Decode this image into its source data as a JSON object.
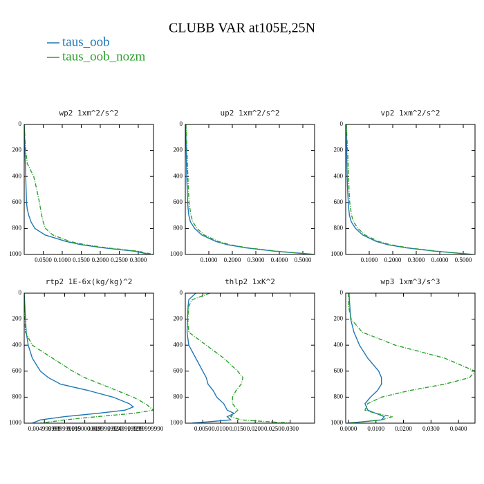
{
  "title": "CLUBB VAR at105E,25N",
  "legend": [
    {
      "name": "taus_oob",
      "color": "#1f77b4",
      "dashed": false
    },
    {
      "name": "taus_oob_nozm",
      "color": "#2ca02c",
      "dashed": true
    }
  ],
  "chart_data": [
    {
      "type": "line",
      "title": "wp2  1xm^2/s^2",
      "y": [
        0,
        100,
        200,
        300,
        400,
        500,
        600,
        650,
        700,
        750,
        800,
        850,
        900,
        925,
        950,
        975,
        1000
      ],
      "series": [
        {
          "values": [
            0,
            0.001,
            0.002,
            0.003,
            0.004,
            0.005,
            0.006,
            0.008,
            0.012,
            0.018,
            0.028,
            0.055,
            0.11,
            0.15,
            0.21,
            0.29,
            0.33
          ]
        },
        {
          "values": [
            0,
            0.002,
            0.004,
            0.008,
            0.025,
            0.033,
            0.04,
            0.043,
            0.046,
            0.05,
            0.056,
            0.075,
            0.12,
            0.16,
            0.22,
            0.3,
            0.34
          ]
        }
      ],
      "xlim": [
        0,
        0.34
      ],
      "ylim": [
        1000,
        0
      ],
      "xticks": [
        {
          "value": 0.05,
          "label": "0.0500"
        },
        {
          "value": 0.1,
          "label": "0.1000"
        },
        {
          "value": 0.15,
          "label": "0.1500"
        },
        {
          "value": 0.2,
          "label": "0.2000"
        },
        {
          "value": 0.25,
          "label": "0.2500"
        },
        {
          "value": 0.3,
          "label": "0.3000"
        }
      ],
      "yticks": [
        0,
        200,
        400,
        600,
        800,
        1000
      ]
    },
    {
      "type": "line",
      "title": "up2  1xm^2/s^2",
      "y": [
        0,
        100,
        200,
        300,
        400,
        500,
        600,
        650,
        700,
        750,
        800,
        850,
        900,
        925,
        950,
        975,
        1000
      ],
      "series": [
        {
          "values": [
            0.002,
            0.003,
            0.004,
            0.005,
            0.006,
            0.008,
            0.01,
            0.012,
            0.015,
            0.022,
            0.04,
            0.07,
            0.13,
            0.18,
            0.26,
            0.38,
            0.55
          ]
        },
        {
          "values": [
            0.003,
            0.005,
            0.007,
            0.009,
            0.011,
            0.013,
            0.016,
            0.02,
            0.024,
            0.032,
            0.05,
            0.08,
            0.14,
            0.19,
            0.27,
            0.39,
            0.55
          ]
        }
      ],
      "xlim": [
        0,
        0.55
      ],
      "ylim": [
        1000,
        0
      ],
      "xticks": [
        {
          "value": 0.1,
          "label": "0.1000"
        },
        {
          "value": 0.2,
          "label": "0.2000"
        },
        {
          "value": 0.3,
          "label": "0.3000"
        },
        {
          "value": 0.4,
          "label": "0.4000"
        },
        {
          "value": 0.5,
          "label": "0.5000"
        }
      ],
      "yticks": [
        0,
        200,
        400,
        600,
        800,
        1000
      ]
    },
    {
      "type": "line",
      "title": "vp2  1xm^2/s^2",
      "y": [
        0,
        100,
        200,
        300,
        400,
        500,
        600,
        650,
        700,
        750,
        800,
        850,
        900,
        925,
        950,
        975,
        1000
      ],
      "series": [
        {
          "values": [
            0.002,
            0.003,
            0.004,
            0.005,
            0.006,
            0.008,
            0.011,
            0.013,
            0.016,
            0.024,
            0.042,
            0.072,
            0.13,
            0.18,
            0.26,
            0.38,
            0.54
          ]
        },
        {
          "values": [
            0.003,
            0.005,
            0.008,
            0.01,
            0.012,
            0.014,
            0.017,
            0.021,
            0.025,
            0.034,
            0.052,
            0.082,
            0.14,
            0.19,
            0.27,
            0.39,
            0.54
          ]
        }
      ],
      "xlim": [
        0,
        0.55
      ],
      "ylim": [
        1000,
        0
      ],
      "xticks": [
        {
          "value": 0.1,
          "label": "0.1000"
        },
        {
          "value": 0.2,
          "label": "0.2000"
        },
        {
          "value": 0.3,
          "label": "0.3000"
        },
        {
          "value": 0.4,
          "label": "0.4000"
        },
        {
          "value": 0.5,
          "label": "0.5000"
        }
      ],
      "yticks": [
        0,
        200,
        400,
        600,
        800,
        1000
      ]
    },
    {
      "type": "line",
      "title": "rtp2  1E-6x(kg/kg)^2",
      "y": [
        0,
        300,
        400,
        500,
        600,
        650,
        700,
        750,
        800,
        850,
        875,
        900,
        925,
        950,
        975,
        1000
      ],
      "series": [
        {
          "values": [
            0,
            0.0005,
            0.001,
            0.002,
            0.004,
            0.006,
            0.009,
            0.016,
            0.022,
            0.026,
            0.027,
            0.025,
            0.018,
            0.01,
            0.004,
            0.002
          ]
        },
        {
          "values": [
            0,
            0.0003,
            0.002,
            0.007,
            0.012,
            0.015,
            0.019,
            0.023,
            0.027,
            0.03,
            0.031,
            0.032,
            0.027,
            0.018,
            0.01,
            0.004
          ]
        }
      ],
      "xlim": [
        0,
        0.032
      ],
      "ylim": [
        1000,
        0
      ],
      "xticks": [
        {
          "value": 0.005,
          "label": "0.004999999"
        },
        {
          "value": 0.01,
          "label": "0.009999999"
        },
        {
          "value": 0.015,
          "label": "0.0150000000"
        },
        {
          "value": 0.02,
          "label": "0.0199999999"
        },
        {
          "value": 0.025,
          "label": "0.0249999999"
        },
        {
          "value": 0.03,
          "label": "0.0299999990"
        }
      ],
      "yticks": [
        0,
        200,
        400,
        600,
        800,
        1000
      ]
    },
    {
      "type": "line",
      "title": "thlp2  1xK^2",
      "y": [
        0,
        50,
        100,
        200,
        300,
        400,
        500,
        600,
        650,
        700,
        750,
        800,
        850,
        900,
        925,
        950,
        975,
        1000
      ],
      "series": [
        {
          "values": [
            0.003,
            0.001,
            0.0008,
            0.0006,
            0.0005,
            0.001,
            0.003,
            0.005,
            0.006,
            0.0065,
            0.008,
            0.009,
            0.011,
            0.012,
            0.014,
            0.012,
            0.013,
            0.002
          ]
        },
        {
          "values": [
            0.007,
            0.002,
            0.001,
            0.0007,
            0.001,
            0.006,
            0.011,
            0.015,
            0.0165,
            0.016,
            0.0145,
            0.0135,
            0.0135,
            0.015,
            0.014,
            0.013,
            0.016,
            0.03
          ]
        }
      ],
      "xlim": [
        0,
        0.037
      ],
      "ylim": [
        1000,
        0
      ],
      "xticks": [
        {
          "value": 0.005,
          "label": "0.0050"
        },
        {
          "value": 0.01,
          "label": "0.0100"
        },
        {
          "value": 0.015,
          "label": "0.0150"
        },
        {
          "value": 0.02,
          "label": "0.0200"
        },
        {
          "value": 0.025,
          "label": "0.0250"
        },
        {
          "value": 0.03,
          "label": "0.0300"
        }
      ],
      "yticks": [
        0,
        200,
        400,
        600,
        800,
        1000
      ]
    },
    {
      "type": "line",
      "title": "wp3  1xm^3/s^3",
      "y": [
        0,
        100,
        200,
        300,
        400,
        500,
        600,
        650,
        700,
        750,
        800,
        850,
        900,
        925,
        950,
        975,
        1000
      ],
      "series": [
        {
          "values": [
            0.0002,
            0.0005,
            0.0008,
            0.002,
            0.004,
            0.007,
            0.011,
            0.012,
            0.012,
            0.0105,
            0.008,
            0.006,
            0.007,
            0.01,
            0.013,
            0.012,
            0
          ]
        },
        {
          "values": [
            0,
            0,
            0.001,
            0.005,
            0.017,
            0.035,
            0.046,
            0.044,
            0.035,
            0.022,
            0.012,
            0.007,
            0.006,
            0.01,
            0.016,
            0.012,
            0
          ]
        }
      ],
      "xlim": [
        -0.001,
        0.046
      ],
      "ylim": [
        1000,
        0
      ],
      "xticks": [
        {
          "value": 0,
          "label": "0.0000"
        },
        {
          "value": 0.01,
          "label": "0.0100"
        },
        {
          "value": 0.02,
          "label": "0.0200"
        },
        {
          "value": 0.03,
          "label": "0.0300"
        },
        {
          "value": 0.04,
          "label": "0.0400"
        }
      ],
      "yticks": [
        0,
        200,
        400,
        600,
        800,
        1000
      ]
    }
  ]
}
